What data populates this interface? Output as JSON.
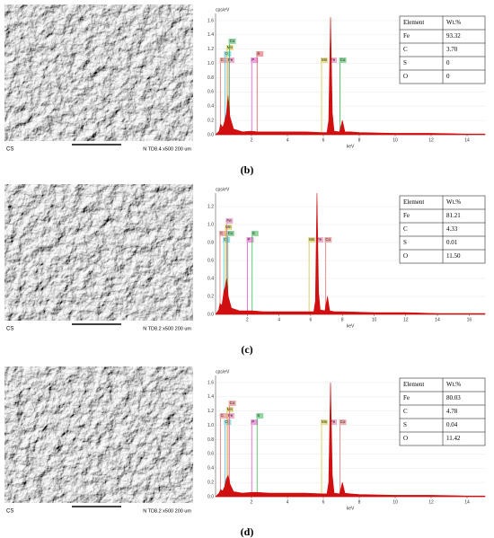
{
  "panels": [
    {
      "label": "(b)",
      "sem": {
        "left_text": "CS",
        "right_text": "N TD8.4  x500   200 um"
      },
      "spectrum": {
        "type": "area",
        "y_label": "cps/eV",
        "x_label": "keV",
        "color": "#d01010",
        "xlim": [
          0,
          15
        ],
        "ylim": [
          0,
          1.7
        ],
        "xticks": [
          2,
          4,
          6,
          8,
          10,
          12,
          14
        ],
        "yticks": [
          {
            "value": 0,
            "label": "0.0"
          },
          0.2,
          0.4,
          0.6,
          0.8,
          {
            "value": 1,
            "label": "1.0"
          },
          1.2,
          1.4,
          1.6
        ],
        "x": [
          0,
          0.2,
          0.28,
          0.4,
          0.52,
          0.6,
          0.7,
          0.8,
          1.0,
          1.5,
          2.0,
          2.3,
          3,
          4,
          5,
          5.9,
          6.2,
          6.3,
          6.4,
          6.5,
          6.6,
          6.9,
          7.06,
          7.2,
          7.5,
          8,
          10,
          12,
          14,
          15
        ],
        "values": [
          0,
          0.05,
          0.15,
          0.1,
          0.2,
          0.3,
          0.55,
          0.25,
          0.08,
          0.04,
          0.05,
          0.04,
          0.04,
          0.04,
          0.04,
          0.03,
          0.03,
          0.2,
          1.65,
          0.3,
          0.05,
          0.04,
          0.2,
          0.04,
          0.04,
          0.03,
          0.02,
          0.02,
          0.01,
          0.01
        ],
        "elements": [
          {
            "symbol": "C",
            "x": 0.28,
            "color": "#e06060"
          },
          {
            "symbol": "O",
            "x": 0.52,
            "color": "#30c0d0"
          },
          {
            "symbol": "Mn",
            "x": 0.64,
            "color": "#d0c020"
          },
          {
            "symbol": "Fe",
            "x": 0.7,
            "color": "#e060a0"
          },
          {
            "symbol": "Co",
            "x": 0.78,
            "color": "#20b040"
          },
          {
            "symbol": "P",
            "x": 2.01,
            "color": "#e040c0"
          },
          {
            "symbol": "S",
            "x": 2.31,
            "color": "#e04040"
          },
          {
            "symbol": "Mn",
            "x": 5.9,
            "color": "#d0c020"
          },
          {
            "symbol": "Fe",
            "x": 6.4,
            "color": "#e060a0"
          },
          {
            "symbol": "Co",
            "x": 6.93,
            "color": "#20b040"
          }
        ]
      },
      "table": {
        "header": [
          "Element",
          "Wt.%"
        ],
        "rows": [
          [
            "Fe",
            "93.32"
          ],
          [
            "C",
            "3.70"
          ],
          [
            "S",
            "0"
          ],
          [
            "O",
            "0"
          ]
        ]
      }
    },
    {
      "label": "(c)",
      "sem": {
        "left_text": "CS",
        "right_text": "N TD8.2  x500   200 um"
      },
      "spectrum": {
        "type": "area",
        "y_label": "cps/eV",
        "x_label": "keV",
        "color": "#d01010",
        "xlim": [
          0,
          17
        ],
        "ylim": [
          0,
          1.35
        ],
        "xticks": [
          2,
          4,
          6,
          8,
          10,
          12,
          14,
          16
        ],
        "yticks": [
          {
            "value": 0,
            "label": "0.0"
          },
          0.2,
          0.4,
          0.6,
          0.8,
          {
            "value": 1,
            "label": "1.0"
          },
          1.2
        ],
        "x": [
          0,
          0.2,
          0.28,
          0.4,
          0.52,
          0.6,
          0.7,
          0.8,
          1.0,
          1.5,
          2.0,
          2.3,
          3,
          4,
          5,
          5.9,
          6.2,
          6.3,
          6.4,
          6.5,
          6.6,
          6.9,
          7.06,
          7.2,
          7.5,
          8,
          10,
          12,
          14,
          17
        ],
        "values": [
          0,
          0.05,
          0.12,
          0.1,
          0.25,
          0.3,
          0.4,
          0.2,
          0.07,
          0.04,
          0.04,
          0.04,
          0.03,
          0.03,
          0.03,
          0.03,
          0.03,
          0.15,
          1.35,
          0.25,
          0.05,
          0.04,
          0.2,
          0.04,
          0.03,
          0.03,
          0.02,
          0.02,
          0.01,
          0.01
        ],
        "elements": [
          {
            "symbol": "O",
            "x": 0.52,
            "color": "#30c0d0"
          },
          {
            "symbol": "C",
            "x": 0.28,
            "color": "#e06060"
          },
          {
            "symbol": "Mn",
            "x": 0.64,
            "color": "#d0c020"
          },
          {
            "symbol": "Fe",
            "x": 0.7,
            "color": "#e060a0"
          },
          {
            "symbol": "Co",
            "x": 0.78,
            "color": "#20b040"
          },
          {
            "symbol": "P",
            "x": 2.01,
            "color": "#e040c0"
          },
          {
            "symbol": "S",
            "x": 2.31,
            "color": "#20b040"
          },
          {
            "symbol": "Mn",
            "x": 5.9,
            "color": "#d0c020"
          },
          {
            "symbol": "Fe",
            "x": 6.4,
            "color": "#e060a0"
          },
          {
            "symbol": "Co",
            "x": 6.93,
            "color": "#e06060"
          }
        ]
      },
      "table": {
        "header": [
          "Element",
          "Wt.%"
        ],
        "rows": [
          [
            "Fe",
            "81.21"
          ],
          [
            "C",
            "4.33"
          ],
          [
            "S",
            "0.01"
          ],
          [
            "O",
            "11.50"
          ]
        ]
      }
    },
    {
      "label": "(d)",
      "sem": {
        "left_text": "CS",
        "right_text": "N TD8.2  x500   200 um"
      },
      "spectrum": {
        "type": "area",
        "y_label": "cps/eV",
        "x_label": "keV",
        "color": "#d01010",
        "xlim": [
          0,
          15
        ],
        "ylim": [
          0,
          1.7
        ],
        "xticks": [
          2,
          4,
          6,
          8,
          10,
          12,
          14
        ],
        "yticks": [
          {
            "value": 0,
            "label": "0.0"
          },
          0.2,
          0.4,
          0.6,
          0.8,
          {
            "value": 1,
            "label": "1.0"
          },
          1.2,
          1.4,
          1.6
        ],
        "x": [
          0,
          0.2,
          0.28,
          0.4,
          0.52,
          0.6,
          0.7,
          0.8,
          1.0,
          1.5,
          2.0,
          2.3,
          3,
          4,
          5,
          5.9,
          6.2,
          6.3,
          6.4,
          6.5,
          6.6,
          6.9,
          7.06,
          7.2,
          7.5,
          8,
          10,
          12,
          14,
          15
        ],
        "values": [
          0,
          0.05,
          0.1,
          0.08,
          0.15,
          0.25,
          0.3,
          0.18,
          0.07,
          0.05,
          0.06,
          0.06,
          0.05,
          0.05,
          0.05,
          0.04,
          0.04,
          0.2,
          1.6,
          0.3,
          0.05,
          0.04,
          0.2,
          0.05,
          0.04,
          0.03,
          0.02,
          0.02,
          0.01,
          0.01
        ],
        "elements": [
          {
            "symbol": "O",
            "x": 0.52,
            "color": "#30c0d0"
          },
          {
            "symbol": "C",
            "x": 0.28,
            "color": "#e06060"
          },
          {
            "symbol": "Mn",
            "x": 0.64,
            "color": "#d0c020"
          },
          {
            "symbol": "Fe",
            "x": 0.7,
            "color": "#e060a0"
          },
          {
            "symbol": "Co",
            "x": 0.78,
            "color": "#e06060"
          },
          {
            "symbol": "P",
            "x": 2.01,
            "color": "#e040c0"
          },
          {
            "symbol": "S",
            "x": 2.31,
            "color": "#20b040"
          },
          {
            "symbol": "Mn",
            "x": 5.9,
            "color": "#d0c020"
          },
          {
            "symbol": "Fe",
            "x": 6.4,
            "color": "#e060a0"
          },
          {
            "symbol": "Co",
            "x": 6.93,
            "color": "#e06060"
          }
        ]
      },
      "table": {
        "header": [
          "Element",
          "Wt.%"
        ],
        "rows": [
          [
            "Fe",
            "80.03"
          ],
          [
            "C",
            "4.78"
          ],
          [
            "S",
            "0.04"
          ],
          [
            "O",
            "11.42"
          ]
        ]
      }
    }
  ]
}
